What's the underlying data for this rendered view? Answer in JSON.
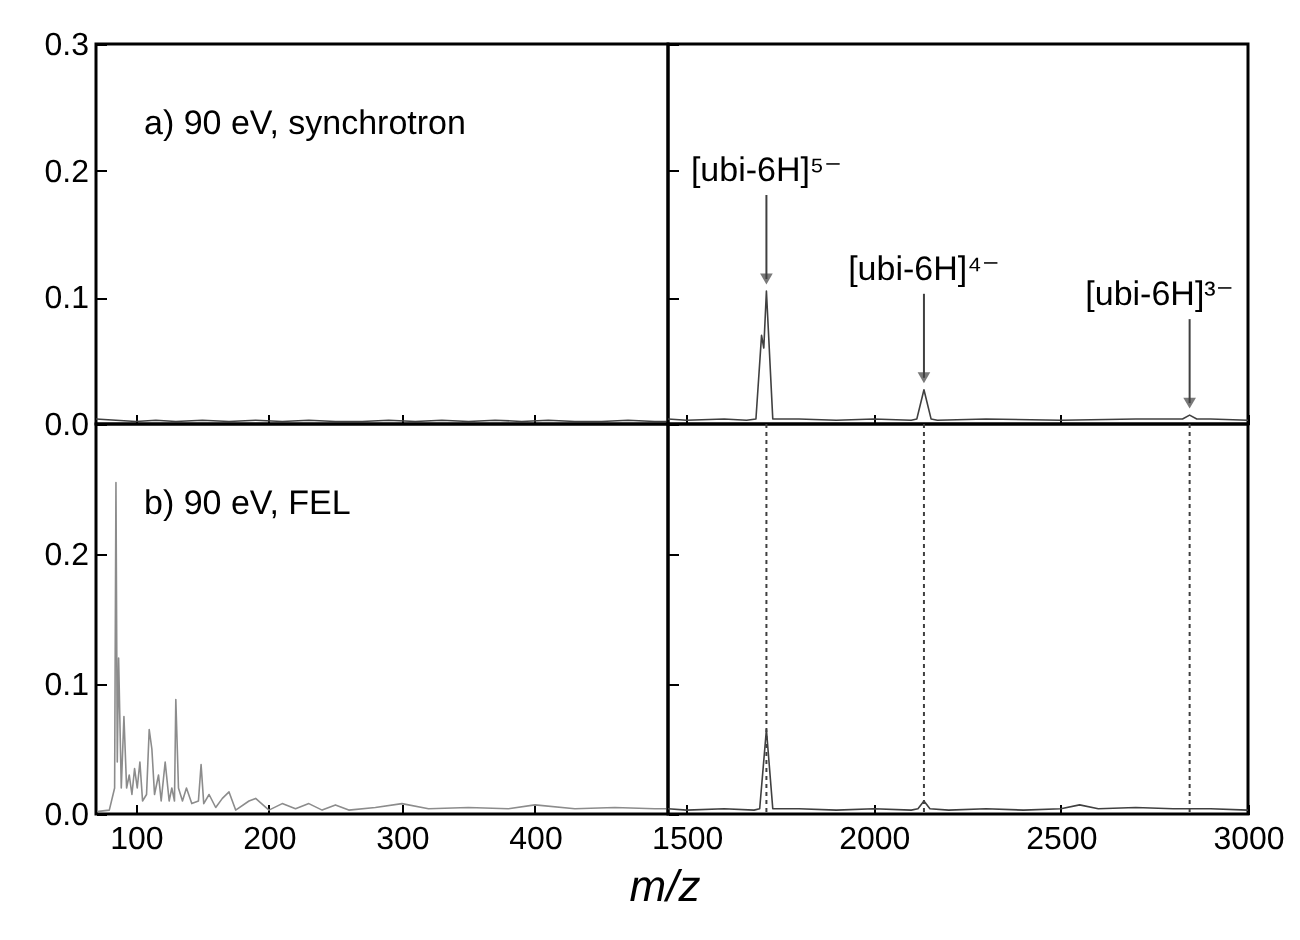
{
  "chart_data": [
    {
      "type": "line",
      "xlim": [
        70,
        500
      ],
      "ylim": [
        0,
        0.3
      ],
      "xticks": [
        100,
        200,
        300,
        400
      ],
      "yticks": [
        {
          "value": 0,
          "label": "0.0"
        },
        0.1,
        0.2,
        0.3
      ],
      "tick_labels": "y",
      "annotations": [
        "a) 90 eV, synchrotron"
      ],
      "series": [
        {
          "color": "#404040",
          "x": [
            70,
            85,
            100,
            115,
            130,
            150,
            170,
            190,
            210,
            230,
            250,
            270,
            290,
            310,
            330,
            350,
            370,
            390,
            410,
            430,
            450,
            470,
            490,
            500
          ],
          "values": [
            0.004,
            0.003,
            0.002,
            0.003,
            0.002,
            0.003,
            0.002,
            0.003,
            0.002,
            0.003,
            0.002,
            0.002,
            0.003,
            0.002,
            0.003,
            0.002,
            0.003,
            0.002,
            0.003,
            0.002,
            0.002,
            0.003,
            0.002,
            0.002
          ]
        }
      ]
    },
    {
      "type": "line",
      "xlim": [
        1450,
        3000
      ],
      "ylim": [
        0,
        0.3
      ],
      "xticks": [
        1500,
        2000,
        2500,
        3000
      ],
      "yticks": [
        0,
        0.1,
        0.2,
        0.3
      ],
      "tick_labels": false,
      "annotations": [
        {
          "text": "[ubi-6H]⁵⁻",
          "x": 1713,
          "y": 0.105
        },
        {
          "text": "[ubi-6H]⁴⁻",
          "x": 2134,
          "y": 0.027
        },
        {
          "text": "[ubi-6H]³⁻",
          "x": 2844,
          "y": 0.007
        }
      ],
      "series": [
        {
          "color": "#404040",
          "x": [
            1450,
            1500,
            1600,
            1660,
            1685,
            1700,
            1706,
            1713,
            1730,
            1800,
            1900,
            2000,
            2100,
            2115,
            2134,
            2153,
            2170,
            2300,
            2500,
            2700,
            2800,
            2825,
            2844,
            2863,
            2900,
            3000
          ],
          "values": [
            0.004,
            0.003,
            0.004,
            0.003,
            0.004,
            0.07,
            0.06,
            0.105,
            0.004,
            0.004,
            0.003,
            0.004,
            0.003,
            0.004,
            0.027,
            0.004,
            0.003,
            0.004,
            0.003,
            0.004,
            0.004,
            0.004,
            0.007,
            0.004,
            0.004,
            0.003
          ]
        }
      ]
    },
    {
      "type": "line",
      "xlabel": "m/z",
      "xlim": [
        70,
        500
      ],
      "ylim": [
        0,
        0.3
      ],
      "xticks": [
        100,
        200,
        300,
        400
      ],
      "yticks": [
        {
          "value": 0,
          "label": "0.0"
        },
        0.1,
        0.2
      ],
      "annotations": [
        "b) 90 eV, FEL"
      ],
      "series": [
        {
          "color": "#8c8c8c",
          "x": [
            72,
            80,
            84,
            85,
            86,
            87,
            89,
            91,
            93,
            95,
            97,
            99,
            101,
            103,
            105,
            108,
            110,
            112,
            114,
            117,
            119,
            122,
            125,
            127,
            129,
            130,
            132,
            135,
            138,
            142,
            147,
            149,
            151,
            155,
            160,
            165,
            170,
            175,
            185,
            190,
            200,
            210,
            220,
            230,
            240,
            250,
            260,
            280,
            300,
            320,
            350,
            380,
            400,
            430,
            460,
            490,
            500
          ],
          "values": [
            0.002,
            0.003,
            0.02,
            0.255,
            0.04,
            0.12,
            0.02,
            0.075,
            0.02,
            0.03,
            0.015,
            0.035,
            0.02,
            0.04,
            0.01,
            0.015,
            0.065,
            0.05,
            0.015,
            0.03,
            0.01,
            0.04,
            0.01,
            0.02,
            0.01,
            0.088,
            0.02,
            0.01,
            0.02,
            0.008,
            0.01,
            0.038,
            0.008,
            0.015,
            0.005,
            0.012,
            0.017,
            0.003,
            0.01,
            0.012,
            0.003,
            0.008,
            0.004,
            0.008,
            0.003,
            0.007,
            0.003,
            0.005,
            0.008,
            0.004,
            0.005,
            0.004,
            0.007,
            0.004,
            0.005,
            0.004,
            0.004
          ]
        }
      ]
    },
    {
      "type": "line",
      "xlim": [
        1450,
        3000
      ],
      "ylim": [
        0,
        0.3
      ],
      "xticks": [
        1500,
        2000,
        2500,
        3000
      ],
      "yticks": [
        0,
        0.1,
        0.2
      ],
      "tick_labels": "x",
      "ref_lines": [
        {
          "axis": "x",
          "value": 1713,
          "line_style": "dotted",
          "color": "#404040"
        },
        {
          "axis": "x",
          "value": 2134,
          "line_style": "dotted",
          "color": "#404040"
        },
        {
          "axis": "x",
          "value": 2844,
          "line_style": "dotted",
          "color": "#404040"
        }
      ],
      "series": [
        {
          "color": "#404040",
          "x": [
            1450,
            1500,
            1600,
            1680,
            1695,
            1713,
            1730,
            1800,
            1900,
            2000,
            2100,
            2118,
            2134,
            2150,
            2200,
            2300,
            2400,
            2500,
            2550,
            2600,
            2700,
            2800,
            2900,
            3000
          ],
          "values": [
            0.004,
            0.003,
            0.004,
            0.003,
            0.004,
            0.065,
            0.004,
            0.004,
            0.003,
            0.004,
            0.003,
            0.004,
            0.01,
            0.004,
            0.003,
            0.004,
            0.003,
            0.004,
            0.007,
            0.004,
            0.005,
            0.004,
            0.004,
            0.003
          ]
        }
      ]
    }
  ]
}
